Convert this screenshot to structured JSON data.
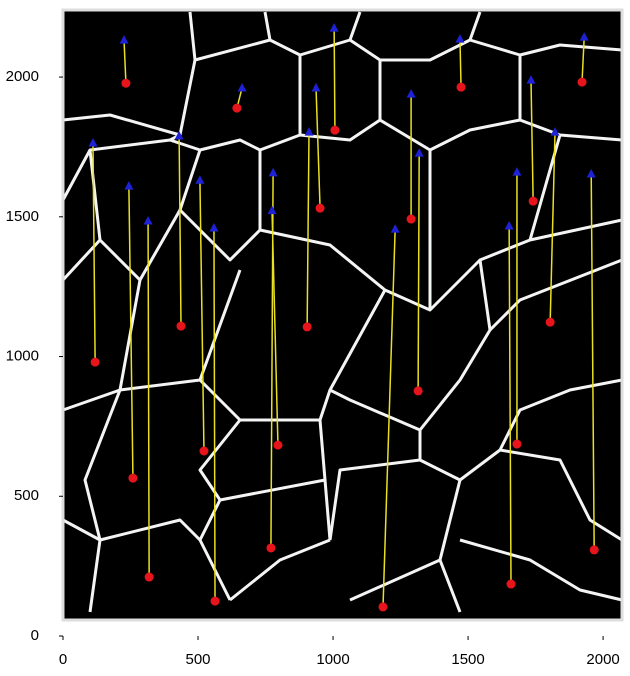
{
  "chart_data": {
    "type": "tracks",
    "xlim": [
      0,
      2070
    ],
    "ylim": [
      0,
      2240
    ],
    "xticks": [
      0,
      500,
      1000,
      1500,
      2000
    ],
    "yticks": [
      0,
      500,
      1000,
      1500,
      2000
    ],
    "track_color": "#e8e020",
    "start_color": "#e8141c",
    "end_color": "#1e22d6",
    "tracks": [
      {
        "start": [
          119,
          980
        ],
        "end": [
          111,
          1764
        ]
      },
      {
        "start": [
          259,
          565
        ],
        "end": [
          244,
          1610
        ]
      },
      {
        "start": [
          319,
          211
        ],
        "end": [
          315,
          1485
        ]
      },
      {
        "start": [
          233,
          1978
        ],
        "end": [
          226,
          2132
        ]
      },
      {
        "start": [
          437,
          1109
        ],
        "end": [
          430,
          1789
        ]
      },
      {
        "start": [
          522,
          662
        ],
        "end": [
          507,
          1631
        ]
      },
      {
        "start": [
          563,
          125
        ],
        "end": [
          559,
          1460
        ]
      },
      {
        "start": [
          644,
          1889
        ],
        "end": [
          663,
          1961
        ]
      },
      {
        "start": [
          770,
          315
        ],
        "end": [
          778,
          1657
        ]
      },
      {
        "start": [
          796,
          683
        ],
        "end": [
          774,
          1522
        ]
      },
      {
        "start": [
          904,
          1106
        ],
        "end": [
          911,
          1803
        ]
      },
      {
        "start": [
          952,
          1531
        ],
        "end": [
          937,
          1961
        ]
      },
      {
        "start": [
          1007,
          1810
        ],
        "end": [
          1004,
          2175
        ]
      },
      {
        "start": [
          1185,
          104
        ],
        "end": [
          1230,
          1456
        ]
      },
      {
        "start": [
          1289,
          1492
        ],
        "end": [
          1289,
          1939
        ]
      },
      {
        "start": [
          1315,
          877
        ],
        "end": [
          1319,
          1728
        ]
      },
      {
        "start": [
          1474,
          1964
        ],
        "end": [
          1470,
          2136
        ]
      },
      {
        "start": [
          1659,
          186
        ],
        "end": [
          1652,
          1467
        ]
      },
      {
        "start": [
          1681,
          687
        ],
        "end": [
          1681,
          1660
        ]
      },
      {
        "start": [
          1741,
          1556
        ],
        "end": [
          1733,
          1989
        ]
      },
      {
        "start": [
          1804,
          1123
        ],
        "end": [
          1822,
          1803
        ]
      },
      {
        "start": [
          1922,
          1982
        ],
        "end": [
          1930,
          2143
        ]
      },
      {
        "start": [
          1967,
          308
        ],
        "end": [
          1956,
          1653
        ]
      }
    ]
  }
}
